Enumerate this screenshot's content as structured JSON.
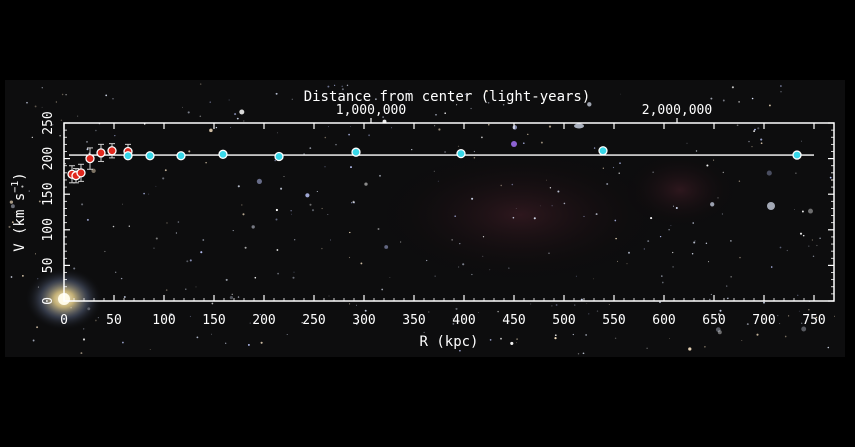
{
  "chart_data": {
    "type": "scatter",
    "title": "Distance from center (light-years)",
    "xlabel": "R (kpc)",
    "ylabel_main": "V (km s",
    "ylabel_sup": "−1",
    "ylabel_close": ")",
    "xlim": [
      0,
      750
    ],
    "ylim": [
      0,
      250
    ],
    "x_ticks": [
      0,
      50,
      100,
      150,
      200,
      250,
      300,
      350,
      400,
      450,
      500,
      550,
      600,
      650,
      700,
      750
    ],
    "y_ticks": [
      0,
      50,
      100,
      150,
      200,
      250
    ],
    "top_axis_ticks": [
      {
        "label": "1,000,000",
        "kpc": 307
      },
      {
        "label": "2,000,000",
        "kpc": 613
      }
    ],
    "model_line": {
      "x": [
        5,
        750
      ],
      "y": [
        205,
        205
      ]
    },
    "series": [
      {
        "marker_color": "#e0281e",
        "x": [
          8,
          12,
          17,
          26,
          37,
          48,
          64
        ],
        "y": [
          178,
          176,
          180,
          200,
          208,
          211,
          210
        ],
        "err": [
          12,
          10,
          12,
          15,
          12,
          10,
          10
        ]
      },
      {
        "marker_color": "#38d7e8",
        "x": [
          64,
          86,
          117,
          159,
          215,
          292,
          397,
          539,
          733
        ],
        "y": [
          204,
          204,
          204,
          206,
          203,
          209,
          207,
          211,
          205
        ],
        "err": [
          3,
          3,
          3,
          3,
          3,
          3,
          3,
          3,
          3
        ]
      }
    ],
    "grid": false,
    "background": "starfield"
  }
}
